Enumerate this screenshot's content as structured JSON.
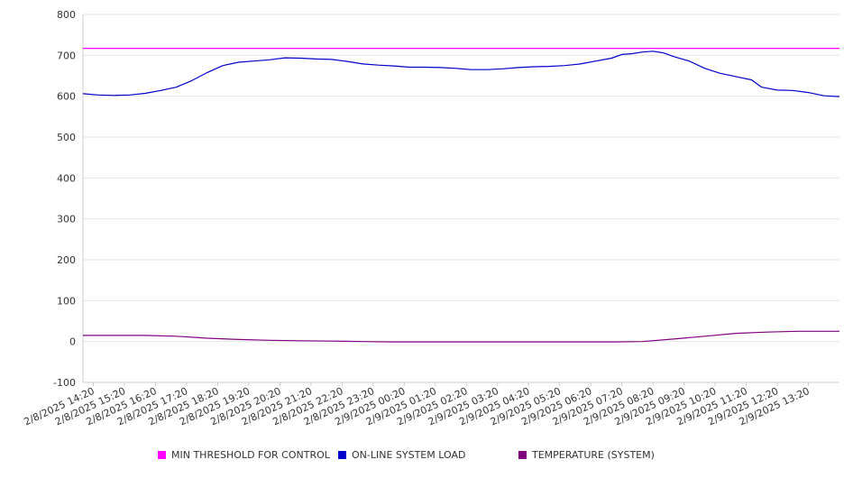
{
  "chart_data": {
    "type": "line",
    "title": "",
    "xlabel": "",
    "ylabel": "",
    "ylim": [
      -100,
      800
    ],
    "yticks": [
      -100,
      0,
      100,
      200,
      300,
      400,
      500,
      600,
      700,
      800
    ],
    "grid": true,
    "legend_position": "bottom",
    "x_start": "2/8/2025 14:00",
    "x_end": "2/9/2025 14:20",
    "x_ticks": [
      {
        "time": "2/8/2025 14:20",
        "label": "2/8/2025 14:20"
      },
      {
        "time": "2/8/2025 15:20",
        "label": "2/8/2025 15:20"
      },
      {
        "time": "2/8/2025 16:20",
        "label": "2/8/2025 16:20"
      },
      {
        "time": "2/8/2025 17:20",
        "label": "2/8/2025 17:20"
      },
      {
        "time": "2/8/2025 18:20",
        "label": "2/8/2025 18:20"
      },
      {
        "time": "2/8/2025 19:20",
        "label": "2/8/2025 19:20"
      },
      {
        "time": "2/8/2025 20:20",
        "label": "2/8/2025 20:20"
      },
      {
        "time": "2/8/2025 21:20",
        "label": "2/8/2025 21:20"
      },
      {
        "time": "2/8/2025 22:20",
        "label": "2/8/2025 22:20"
      },
      {
        "time": "2/8/2025 23:20",
        "label": "2/8/2025 23:20"
      },
      {
        "time": "2/9/2025 00:20",
        "label": "2/9/2025 00:20"
      },
      {
        "time": "2/9/2025 01:20",
        "label": "2/9/2025 01:20"
      },
      {
        "time": "2/9/2025 02:20",
        "label": "2/9/2025 02:20"
      },
      {
        "time": "2/9/2025 03:20",
        "label": "2/9/2025 03:20"
      },
      {
        "time": "2/9/2025 04:20",
        "label": "2/9/2025 04:20"
      },
      {
        "time": "2/9/2025 05:20",
        "label": "2/9/2025 05:20"
      },
      {
        "time": "2/9/2025 06:20",
        "label": "2/9/2025 06:20"
      },
      {
        "time": "2/9/2025 07:20",
        "label": "2/9/2025 07:20"
      },
      {
        "time": "2/9/2025 08:20",
        "label": "2/9/2025 08:20"
      },
      {
        "time": "2/9/2025 09:20",
        "label": "2/9/2025 09:20"
      },
      {
        "time": "2/9/2025 10:20",
        "label": "2/9/2025 10:20"
      },
      {
        "time": "2/9/2025 11:20",
        "label": "2/9/2025 11:20"
      },
      {
        "time": "2/9/2025 12:20",
        "label": "2/9/2025 12:20"
      },
      {
        "time": "2/9/2025 13:20",
        "label": "2/9/2025 13:20"
      }
    ],
    "series": [
      {
        "name": "MIN THRESHOLD FOR CONTROL",
        "color": "#ff00ff",
        "points": [
          [
            "2/8/2025 14:00",
            717
          ],
          [
            "2/9/2025 14:20",
            717
          ]
        ]
      },
      {
        "name": "ON-LINE SYSTEM LOAD",
        "color": "#0000cc",
        "points": [
          [
            "2/8/2025 14:00",
            606
          ],
          [
            "2/8/2025 14:30",
            603
          ],
          [
            "2/8/2025 15:00",
            602
          ],
          [
            "2/8/2025 15:30",
            603
          ],
          [
            "2/8/2025 16:00",
            607
          ],
          [
            "2/8/2025 16:30",
            614
          ],
          [
            "2/8/2025 17:00",
            622
          ],
          [
            "2/8/2025 17:30",
            638
          ],
          [
            "2/8/2025 18:00",
            658
          ],
          [
            "2/8/2025 18:30",
            675
          ],
          [
            "2/8/2025 19:00",
            683
          ],
          [
            "2/8/2025 19:30",
            686
          ],
          [
            "2/8/2025 20:00",
            689
          ],
          [
            "2/8/2025 20:30",
            694
          ],
          [
            "2/8/2025 21:00",
            693
          ],
          [
            "2/8/2025 21:30",
            691
          ],
          [
            "2/8/2025 22:00",
            690
          ],
          [
            "2/8/2025 22:30",
            685
          ],
          [
            "2/8/2025 23:00",
            679
          ],
          [
            "2/8/2025 23:30",
            676
          ],
          [
            "2/9/2025 00:00",
            674
          ],
          [
            "2/9/2025 00:30",
            671
          ],
          [
            "2/9/2025 01:00",
            671
          ],
          [
            "2/9/2025 01:30",
            670
          ],
          [
            "2/9/2025 02:00",
            668
          ],
          [
            "2/9/2025 02:30",
            665
          ],
          [
            "2/9/2025 03:00",
            665
          ],
          [
            "2/9/2025 03:30",
            667
          ],
          [
            "2/9/2025 04:00",
            670
          ],
          [
            "2/9/2025 04:30",
            672
          ],
          [
            "2/9/2025 05:00",
            673
          ],
          [
            "2/9/2025 05:30",
            675
          ],
          [
            "2/9/2025 06:00",
            679
          ],
          [
            "2/9/2025 06:30",
            686
          ],
          [
            "2/9/2025 07:00",
            693
          ],
          [
            "2/9/2025 07:20",
            702
          ],
          [
            "2/9/2025 07:40",
            704
          ],
          [
            "2/9/2025 08:00",
            708
          ],
          [
            "2/9/2025 08:20",
            710
          ],
          [
            "2/9/2025 08:40",
            706
          ],
          [
            "2/9/2025 09:00",
            697
          ],
          [
            "2/9/2025 09:30",
            686
          ],
          [
            "2/9/2025 10:00",
            668
          ],
          [
            "2/9/2025 10:30",
            656
          ],
          [
            "2/9/2025 11:00",
            648
          ],
          [
            "2/9/2025 11:30",
            640
          ],
          [
            "2/9/2025 11:50",
            622
          ],
          [
            "2/9/2025 12:20",
            615
          ],
          [
            "2/9/2025 12:50",
            614
          ],
          [
            "2/9/2025 13:20",
            609
          ],
          [
            "2/9/2025 13:50",
            601
          ],
          [
            "2/9/2025 14:20",
            599
          ]
        ]
      },
      {
        "name": "TEMPERATURE (SYSTEM)",
        "color": "#800080",
        "points": [
          [
            "2/8/2025 14:00",
            15
          ],
          [
            "2/8/2025 15:00",
            15
          ],
          [
            "2/8/2025 16:00",
            15
          ],
          [
            "2/8/2025 17:00",
            13
          ],
          [
            "2/8/2025 18:00",
            8
          ],
          [
            "2/8/2025 19:00",
            5
          ],
          [
            "2/8/2025 20:00",
            3
          ],
          [
            "2/8/2025 21:00",
            2
          ],
          [
            "2/8/2025 22:00",
            1
          ],
          [
            "2/8/2025 23:00",
            0
          ],
          [
            "2/9/2025 00:00",
            -1
          ],
          [
            "2/9/2025 01:00",
            -1
          ],
          [
            "2/9/2025 02:00",
            -1
          ],
          [
            "2/9/2025 03:00",
            -1
          ],
          [
            "2/9/2025 04:00",
            -1
          ],
          [
            "2/9/2025 05:00",
            -1
          ],
          [
            "2/9/2025 06:00",
            -1
          ],
          [
            "2/9/2025 07:00",
            -1
          ],
          [
            "2/9/2025 08:00",
            0
          ],
          [
            "2/9/2025 09:00",
            6
          ],
          [
            "2/9/2025 10:00",
            13
          ],
          [
            "2/9/2025 11:00",
            20
          ],
          [
            "2/9/2025 12:00",
            23
          ],
          [
            "2/9/2025 13:00",
            25
          ],
          [
            "2/9/2025 14:20",
            25
          ]
        ]
      }
    ]
  }
}
